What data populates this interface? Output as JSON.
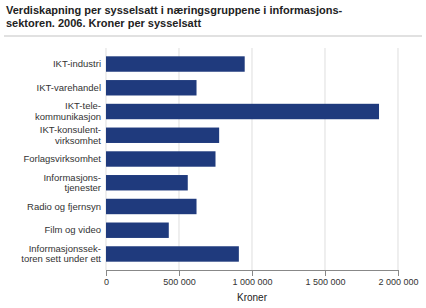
{
  "chart_data": {
    "type": "bar",
    "orientation": "horizontal",
    "title": "Verdiskapning per sysselsatt i næringsgruppene i informasjons-\nsektoren. 2006. Kroner per sysselsatt",
    "categories": [
      "Informasjonssek-\ntoren sett under ett",
      "Film og video",
      "Radio og fjernsyn",
      "Informasjons-\ntjenester",
      "Forlagsvirksomhet",
      "IKT-konsulent-\nvirksomhet",
      "IKT-tele-\nkommunikasjon",
      "IKT-varehandel",
      "IKT-industri"
    ],
    "values": [
      910000,
      430000,
      620000,
      560000,
      750000,
      775000,
      1870000,
      620000,
      950000
    ],
    "color": "#1f3a7d",
    "xlabel": "Kroner",
    "xlim": [
      0,
      2000000
    ],
    "xticks": [
      0,
      {
        "value": 500000,
        "label": "500 000"
      },
      {
        "value": 1000000,
        "label": "1 000 000"
      },
      {
        "value": 1500000,
        "label": "1 500 000"
      },
      {
        "value": 2000000,
        "label": "2 000 000"
      }
    ],
    "grid": true
  }
}
